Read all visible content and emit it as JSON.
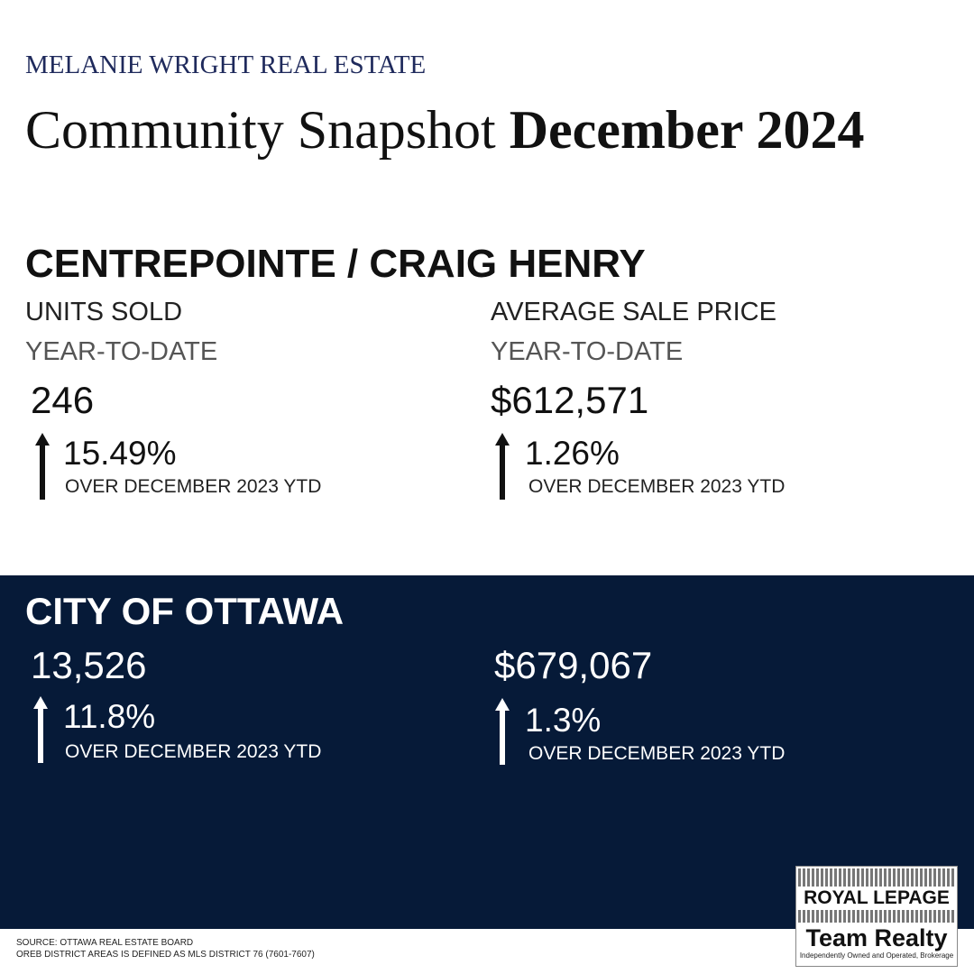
{
  "header": {
    "brand": "MELANIE WRIGHT REAL ESTATE",
    "title": "Community Snapshot",
    "title_emphasis": "December 2024"
  },
  "community": {
    "name": "CENTREPOINTE / CRAIG HENRY",
    "metrics": [
      {
        "label": "UNITS SOLD",
        "period": "YEAR-TO-DATE",
        "value": "246",
        "change": "15.49%",
        "comparison": "OVER DECEMBER 2023 YTD"
      },
      {
        "label": "AVERAGE SALE PRICE",
        "period": "YEAR-TO-DATE",
        "value": "$612,571",
        "change": "1.26%",
        "comparison": "OVER DECEMBER 2023 YTD"
      }
    ]
  },
  "city": {
    "name": "CITY OF OTTAWA",
    "metrics": [
      {
        "value": "13,526",
        "change": "11.8%",
        "comparison": "OVER DECEMBER 2023 YTD"
      },
      {
        "value": "$679,067",
        "change": "1.3%",
        "comparison": "OVER DECEMBER 2023 YTD"
      }
    ]
  },
  "footer": {
    "source": "SOURCE: OTTAWA REAL ESTATE BOARD",
    "note": "OREB DISTRICT AREAS IS DEFINED AS MLS DISTRICT 76 (7601-7607)"
  },
  "logo": {
    "brand": "ROYAL LEPAGE",
    "office": "Team Realty",
    "tagline": "Independently Owned and Operated, Brokerage"
  }
}
